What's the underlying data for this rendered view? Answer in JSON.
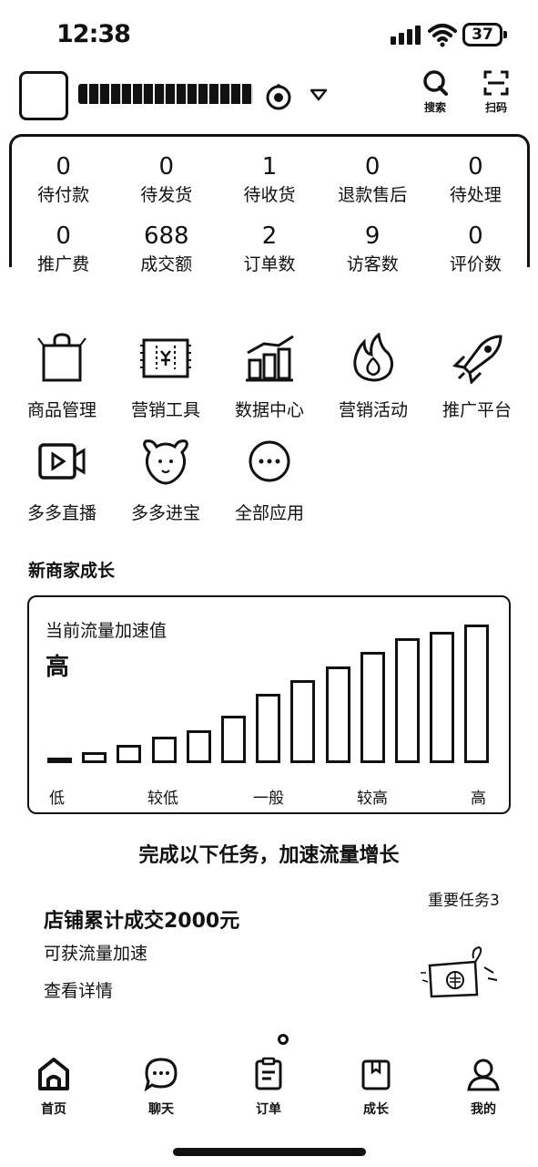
{
  "status_bar": {
    "time": "12:38",
    "battery": "37"
  },
  "header": {
    "shop_name": "",
    "search_label": "搜索",
    "scan_label": "扫码"
  },
  "stats": [
    {
      "value": "0",
      "label": "待付款"
    },
    {
      "value": "0",
      "label": "待发货"
    },
    {
      "value": "1",
      "label": "待收货"
    },
    {
      "value": "0",
      "label": "退款售后"
    },
    {
      "value": "0",
      "label": "待处理"
    },
    {
      "value": "0",
      "label": "推广费"
    },
    {
      "value": "688",
      "label": "成交额"
    },
    {
      "value": "2",
      "label": "订单数"
    },
    {
      "value": "9",
      "label": "访客数"
    },
    {
      "value": "0",
      "label": "评价数"
    }
  ],
  "apps": [
    {
      "label": "商品管理",
      "icon": "shopping-bag-icon"
    },
    {
      "label": "营销工具",
      "icon": "coupon-icon"
    },
    {
      "label": "数据中心",
      "icon": "bar-chart-icon"
    },
    {
      "label": "营销活动",
      "icon": "fire-icon"
    },
    {
      "label": "推广平台",
      "icon": "rocket-icon"
    },
    {
      "label": "多多直播",
      "icon": "live-video-icon"
    },
    {
      "label": "多多进宝",
      "icon": "mascot-icon"
    },
    {
      "label": "全部应用",
      "icon": "more-icon"
    }
  ],
  "growth": {
    "section_title": "新商家成长",
    "metric_label": "当前流量加速值",
    "current_level": "高",
    "chart_data": {
      "type": "bar",
      "title": "当前流量加速值",
      "x_tick_labels": [
        "低",
        "较低",
        "一般",
        "较高",
        "高"
      ],
      "bar_count": 13,
      "relative_heights": [
        0.04,
        0.08,
        0.13,
        0.19,
        0.24,
        0.34,
        0.5,
        0.6,
        0.7,
        0.8,
        0.9,
        0.95,
        1.0
      ],
      "active_bar_index": 0
    }
  },
  "task_section": {
    "title": "完成以下任务，加速流量增长",
    "badge": "重要任务3",
    "task_name": "店铺累计成交2000元",
    "task_desc": "可获流量加速",
    "detail_link": "查看详情"
  },
  "tabbar": [
    {
      "label": "首页",
      "icon": "home-icon"
    },
    {
      "label": "聊天",
      "icon": "chat-icon"
    },
    {
      "label": "订单",
      "icon": "order-icon"
    },
    {
      "label": "成长",
      "icon": "growth-icon"
    },
    {
      "label": "我的",
      "icon": "profile-icon"
    }
  ]
}
